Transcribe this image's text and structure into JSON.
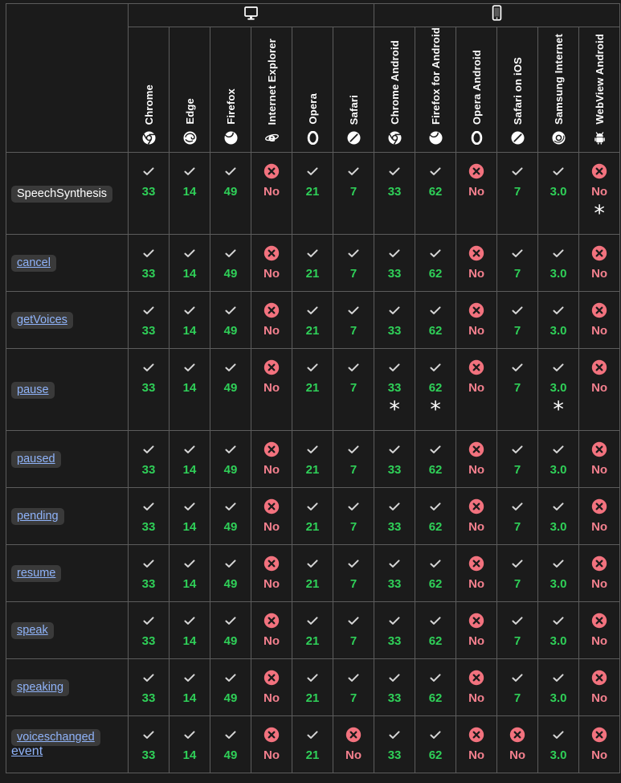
{
  "colors": {
    "background": "#1b1b1b",
    "border": "#5c5c5c",
    "supported": "#2fd058",
    "unsupported": "#f4808e",
    "cross_circle": "#f2727e",
    "check": "#d6d6d6",
    "link": "#8fb3f9",
    "code_bg": "#3a3a3a",
    "footnote": "#ffffff"
  },
  "table": {
    "platform_groups": [
      {
        "id": "desktop",
        "icon": "desktop-icon",
        "span": 6
      },
      {
        "id": "mobile",
        "icon": "mobile-icon",
        "span": 6
      }
    ],
    "browsers": [
      {
        "id": "chrome",
        "label": "Chrome",
        "icon": "chrome"
      },
      {
        "id": "edge",
        "label": "Edge",
        "icon": "edge"
      },
      {
        "id": "firefox",
        "label": "Firefox",
        "icon": "firefox"
      },
      {
        "id": "internet-explorer",
        "label": "Internet Explorer",
        "icon": "ie"
      },
      {
        "id": "opera",
        "label": "Opera",
        "icon": "opera"
      },
      {
        "id": "safari",
        "label": "Safari",
        "icon": "safari"
      },
      {
        "id": "chrome-android",
        "label": "Chrome Android",
        "icon": "chrome"
      },
      {
        "id": "firefox-android",
        "label": "Firefox for Android",
        "icon": "firefox"
      },
      {
        "id": "opera-android",
        "label": "Opera Android",
        "icon": "opera"
      },
      {
        "id": "safari-ios",
        "label": "Safari on iOS",
        "icon": "safari"
      },
      {
        "id": "samsung-internet",
        "label": "Samsung Internet",
        "icon": "samsung"
      },
      {
        "id": "webview-android",
        "label": "WebView Android",
        "icon": "android"
      }
    ],
    "rows": [
      {
        "feature": "SpeechSynthesis",
        "is_link": false,
        "suffix": "",
        "cells": [
          {
            "support": "yes",
            "label": "33",
            "footnote": ""
          },
          {
            "support": "yes",
            "label": "14",
            "footnote": ""
          },
          {
            "support": "yes",
            "label": "49",
            "footnote": ""
          },
          {
            "support": "no",
            "label": "No",
            "footnote": ""
          },
          {
            "support": "yes",
            "label": "21",
            "footnote": ""
          },
          {
            "support": "yes",
            "label": "7",
            "footnote": ""
          },
          {
            "support": "yes",
            "label": "33",
            "footnote": ""
          },
          {
            "support": "yes",
            "label": "62",
            "footnote": ""
          },
          {
            "support": "no",
            "label": "No",
            "footnote": ""
          },
          {
            "support": "yes",
            "label": "7",
            "footnote": ""
          },
          {
            "support": "yes",
            "label": "3.0",
            "footnote": ""
          },
          {
            "support": "no",
            "label": "No",
            "footnote": "*"
          }
        ]
      },
      {
        "feature": "cancel",
        "is_link": true,
        "suffix": "",
        "cells": [
          {
            "support": "yes",
            "label": "33",
            "footnote": ""
          },
          {
            "support": "yes",
            "label": "14",
            "footnote": ""
          },
          {
            "support": "yes",
            "label": "49",
            "footnote": ""
          },
          {
            "support": "no",
            "label": "No",
            "footnote": ""
          },
          {
            "support": "yes",
            "label": "21",
            "footnote": ""
          },
          {
            "support": "yes",
            "label": "7",
            "footnote": ""
          },
          {
            "support": "yes",
            "label": "33",
            "footnote": ""
          },
          {
            "support": "yes",
            "label": "62",
            "footnote": ""
          },
          {
            "support": "no",
            "label": "No",
            "footnote": ""
          },
          {
            "support": "yes",
            "label": "7",
            "footnote": ""
          },
          {
            "support": "yes",
            "label": "3.0",
            "footnote": ""
          },
          {
            "support": "no",
            "label": "No",
            "footnote": ""
          }
        ]
      },
      {
        "feature": "getVoices",
        "is_link": true,
        "suffix": "",
        "cells": [
          {
            "support": "yes",
            "label": "33",
            "footnote": ""
          },
          {
            "support": "yes",
            "label": "14",
            "footnote": ""
          },
          {
            "support": "yes",
            "label": "49",
            "footnote": ""
          },
          {
            "support": "no",
            "label": "No",
            "footnote": ""
          },
          {
            "support": "yes",
            "label": "21",
            "footnote": ""
          },
          {
            "support": "yes",
            "label": "7",
            "footnote": ""
          },
          {
            "support": "yes",
            "label": "33",
            "footnote": ""
          },
          {
            "support": "yes",
            "label": "62",
            "footnote": ""
          },
          {
            "support": "no",
            "label": "No",
            "footnote": ""
          },
          {
            "support": "yes",
            "label": "7",
            "footnote": ""
          },
          {
            "support": "yes",
            "label": "3.0",
            "footnote": ""
          },
          {
            "support": "no",
            "label": "No",
            "footnote": ""
          }
        ]
      },
      {
        "feature": "pause",
        "is_link": true,
        "suffix": "",
        "cells": [
          {
            "support": "yes",
            "label": "33",
            "footnote": ""
          },
          {
            "support": "yes",
            "label": "14",
            "footnote": ""
          },
          {
            "support": "yes",
            "label": "49",
            "footnote": ""
          },
          {
            "support": "no",
            "label": "No",
            "footnote": ""
          },
          {
            "support": "yes",
            "label": "21",
            "footnote": ""
          },
          {
            "support": "yes",
            "label": "7",
            "footnote": ""
          },
          {
            "support": "yes",
            "label": "33",
            "footnote": "*"
          },
          {
            "support": "yes",
            "label": "62",
            "footnote": "*"
          },
          {
            "support": "no",
            "label": "No",
            "footnote": ""
          },
          {
            "support": "yes",
            "label": "7",
            "footnote": ""
          },
          {
            "support": "yes",
            "label": "3.0",
            "footnote": "*"
          },
          {
            "support": "no",
            "label": "No",
            "footnote": ""
          }
        ]
      },
      {
        "feature": "paused",
        "is_link": true,
        "suffix": "",
        "cells": [
          {
            "support": "yes",
            "label": "33",
            "footnote": ""
          },
          {
            "support": "yes",
            "label": "14",
            "footnote": ""
          },
          {
            "support": "yes",
            "label": "49",
            "footnote": ""
          },
          {
            "support": "no",
            "label": "No",
            "footnote": ""
          },
          {
            "support": "yes",
            "label": "21",
            "footnote": ""
          },
          {
            "support": "yes",
            "label": "7",
            "footnote": ""
          },
          {
            "support": "yes",
            "label": "33",
            "footnote": ""
          },
          {
            "support": "yes",
            "label": "62",
            "footnote": ""
          },
          {
            "support": "no",
            "label": "No",
            "footnote": ""
          },
          {
            "support": "yes",
            "label": "7",
            "footnote": ""
          },
          {
            "support": "yes",
            "label": "3.0",
            "footnote": ""
          },
          {
            "support": "no",
            "label": "No",
            "footnote": ""
          }
        ]
      },
      {
        "feature": "pending",
        "is_link": true,
        "suffix": "",
        "cells": [
          {
            "support": "yes",
            "label": "33",
            "footnote": ""
          },
          {
            "support": "yes",
            "label": "14",
            "footnote": ""
          },
          {
            "support": "yes",
            "label": "49",
            "footnote": ""
          },
          {
            "support": "no",
            "label": "No",
            "footnote": ""
          },
          {
            "support": "yes",
            "label": "21",
            "footnote": ""
          },
          {
            "support": "yes",
            "label": "7",
            "footnote": ""
          },
          {
            "support": "yes",
            "label": "33",
            "footnote": ""
          },
          {
            "support": "yes",
            "label": "62",
            "footnote": ""
          },
          {
            "support": "no",
            "label": "No",
            "footnote": ""
          },
          {
            "support": "yes",
            "label": "7",
            "footnote": ""
          },
          {
            "support": "yes",
            "label": "3.0",
            "footnote": ""
          },
          {
            "support": "no",
            "label": "No",
            "footnote": ""
          }
        ]
      },
      {
        "feature": "resume",
        "is_link": true,
        "suffix": "",
        "cells": [
          {
            "support": "yes",
            "label": "33",
            "footnote": ""
          },
          {
            "support": "yes",
            "label": "14",
            "footnote": ""
          },
          {
            "support": "yes",
            "label": "49",
            "footnote": ""
          },
          {
            "support": "no",
            "label": "No",
            "footnote": ""
          },
          {
            "support": "yes",
            "label": "21",
            "footnote": ""
          },
          {
            "support": "yes",
            "label": "7",
            "footnote": ""
          },
          {
            "support": "yes",
            "label": "33",
            "footnote": ""
          },
          {
            "support": "yes",
            "label": "62",
            "footnote": ""
          },
          {
            "support": "no",
            "label": "No",
            "footnote": ""
          },
          {
            "support": "yes",
            "label": "7",
            "footnote": ""
          },
          {
            "support": "yes",
            "label": "3.0",
            "footnote": ""
          },
          {
            "support": "no",
            "label": "No",
            "footnote": ""
          }
        ]
      },
      {
        "feature": "speak",
        "is_link": true,
        "suffix": "",
        "cells": [
          {
            "support": "yes",
            "label": "33",
            "footnote": ""
          },
          {
            "support": "yes",
            "label": "14",
            "footnote": ""
          },
          {
            "support": "yes",
            "label": "49",
            "footnote": ""
          },
          {
            "support": "no",
            "label": "No",
            "footnote": ""
          },
          {
            "support": "yes",
            "label": "21",
            "footnote": ""
          },
          {
            "support": "yes",
            "label": "7",
            "footnote": ""
          },
          {
            "support": "yes",
            "label": "33",
            "footnote": ""
          },
          {
            "support": "yes",
            "label": "62",
            "footnote": ""
          },
          {
            "support": "no",
            "label": "No",
            "footnote": ""
          },
          {
            "support": "yes",
            "label": "7",
            "footnote": ""
          },
          {
            "support": "yes",
            "label": "3.0",
            "footnote": ""
          },
          {
            "support": "no",
            "label": "No",
            "footnote": ""
          }
        ]
      },
      {
        "feature": "speaking",
        "is_link": true,
        "suffix": "",
        "cells": [
          {
            "support": "yes",
            "label": "33",
            "footnote": ""
          },
          {
            "support": "yes",
            "label": "14",
            "footnote": ""
          },
          {
            "support": "yes",
            "label": "49",
            "footnote": ""
          },
          {
            "support": "no",
            "label": "No",
            "footnote": ""
          },
          {
            "support": "yes",
            "label": "21",
            "footnote": ""
          },
          {
            "support": "yes",
            "label": "7",
            "footnote": ""
          },
          {
            "support": "yes",
            "label": "33",
            "footnote": ""
          },
          {
            "support": "yes",
            "label": "62",
            "footnote": ""
          },
          {
            "support": "no",
            "label": "No",
            "footnote": ""
          },
          {
            "support": "yes",
            "label": "7",
            "footnote": ""
          },
          {
            "support": "yes",
            "label": "3.0",
            "footnote": ""
          },
          {
            "support": "no",
            "label": "No",
            "footnote": ""
          }
        ]
      },
      {
        "feature": "voiceschanged",
        "is_link": true,
        "suffix": "event",
        "cells": [
          {
            "support": "yes",
            "label": "33",
            "footnote": ""
          },
          {
            "support": "yes",
            "label": "14",
            "footnote": ""
          },
          {
            "support": "yes",
            "label": "49",
            "footnote": ""
          },
          {
            "support": "no",
            "label": "No",
            "footnote": ""
          },
          {
            "support": "yes",
            "label": "21",
            "footnote": ""
          },
          {
            "support": "no",
            "label": "No",
            "footnote": ""
          },
          {
            "support": "yes",
            "label": "33",
            "footnote": ""
          },
          {
            "support": "yes",
            "label": "62",
            "footnote": ""
          },
          {
            "support": "no",
            "label": "No",
            "footnote": ""
          },
          {
            "support": "no",
            "label": "No",
            "footnote": ""
          },
          {
            "support": "yes",
            "label": "3.0",
            "footnote": ""
          },
          {
            "support": "no",
            "label": "No",
            "footnote": ""
          }
        ]
      }
    ]
  }
}
